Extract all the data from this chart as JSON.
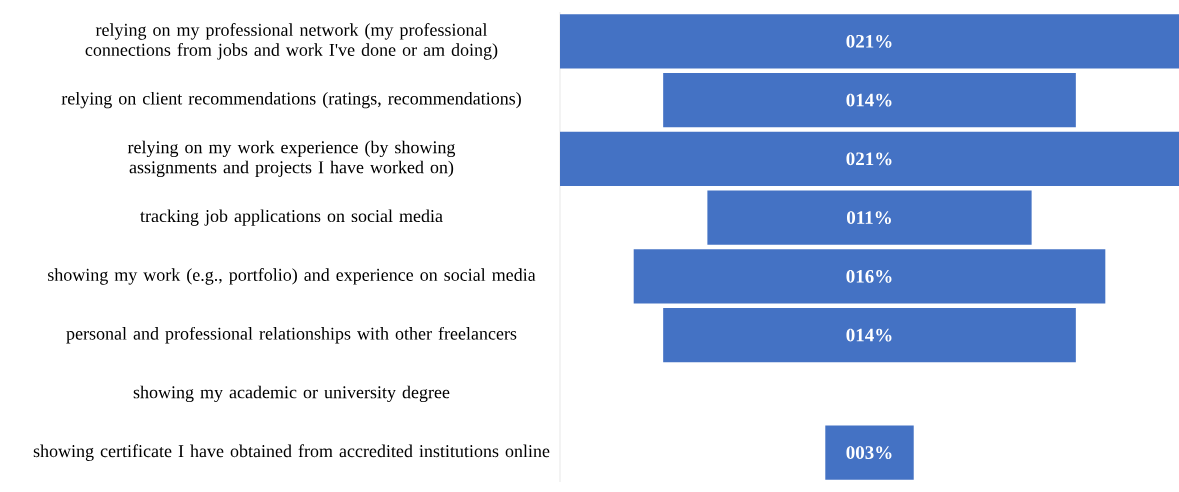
{
  "chart_data": {
    "type": "other",
    "categories": [
      "relying on my professional network (my professional connections from jobs and work I've done or am doing)",
      "relying on client recommendations (ratings, recommendations)",
      "relying on my work experience (by showing assignments and projects I have worked on)",
      "tracking job applications on social media",
      "showing my work (e.g., portfolio) and experience on social media",
      "personal and professional relationships with other freelancers",
      "showing my academic or university degree",
      "showing certificate I have obtained from accredited institutions online"
    ],
    "values": [
      21,
      14,
      21,
      11,
      16,
      14,
      null,
      3
    ],
    "value_labels": [
      "021%",
      "014%",
      "021%",
      "011%",
      "016%",
      "014%",
      null,
      "003%"
    ],
    "color": "#4472c4"
  }
}
